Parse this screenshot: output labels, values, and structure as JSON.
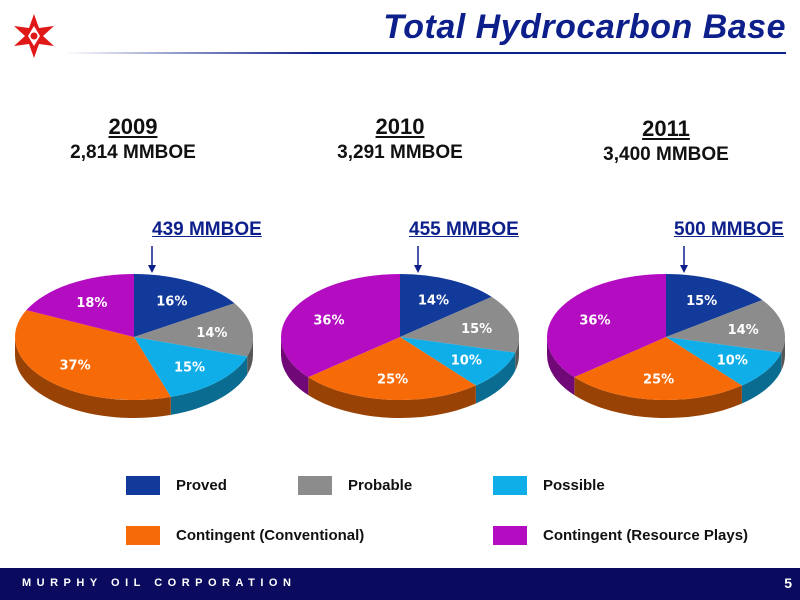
{
  "header": {
    "title": "Total Hydrocarbon Base"
  },
  "footer": {
    "company": "MURPHY OIL CORPORATION",
    "page": "5"
  },
  "colors": {
    "Proved": "#123a9a",
    "Probable": "#8c8c8c",
    "Possible": "#10aee8",
    "Contingent (Conventional)": "#f76a08",
    "Contingent (Resource Plays)": "#b40dc1"
  },
  "legend": [
    "Proved",
    "Probable",
    "Possible",
    "Contingent (Conventional)",
    "Contingent (Resource Plays)"
  ],
  "chart_data": [
    {
      "type": "pie",
      "year": "2009",
      "total": "2,814 MMBOE",
      "callout": "439 MMBOE",
      "categories": [
        "Proved",
        "Probable",
        "Possible",
        "Contingent (Conventional)",
        "Contingent (Resource Plays)"
      ],
      "values": [
        16,
        14,
        15,
        37,
        18
      ],
      "labels": [
        "16%",
        "14%",
        "15%",
        "37%",
        "18%"
      ]
    },
    {
      "type": "pie",
      "year": "2010",
      "total": "3,291 MMBOE",
      "callout": "455 MMBOE",
      "categories": [
        "Proved",
        "Probable",
        "Possible",
        "Contingent (Conventional)",
        "Contingent (Resource Plays)"
      ],
      "values": [
        14,
        15,
        10,
        25,
        36
      ],
      "labels": [
        "14%",
        "15%",
        "10%",
        "25%",
        "36%"
      ]
    },
    {
      "type": "pie",
      "year": "2011",
      "total": "3,400 MMBOE",
      "callout": "500 MMBOE",
      "categories": [
        "Proved",
        "Probable",
        "Possible",
        "Contingent (Conventional)",
        "Contingent (Resource Plays)"
      ],
      "values": [
        15,
        14,
        10,
        25,
        36
      ],
      "labels": [
        "15%",
        "14%",
        "10%",
        "25%",
        "36%"
      ]
    }
  ]
}
